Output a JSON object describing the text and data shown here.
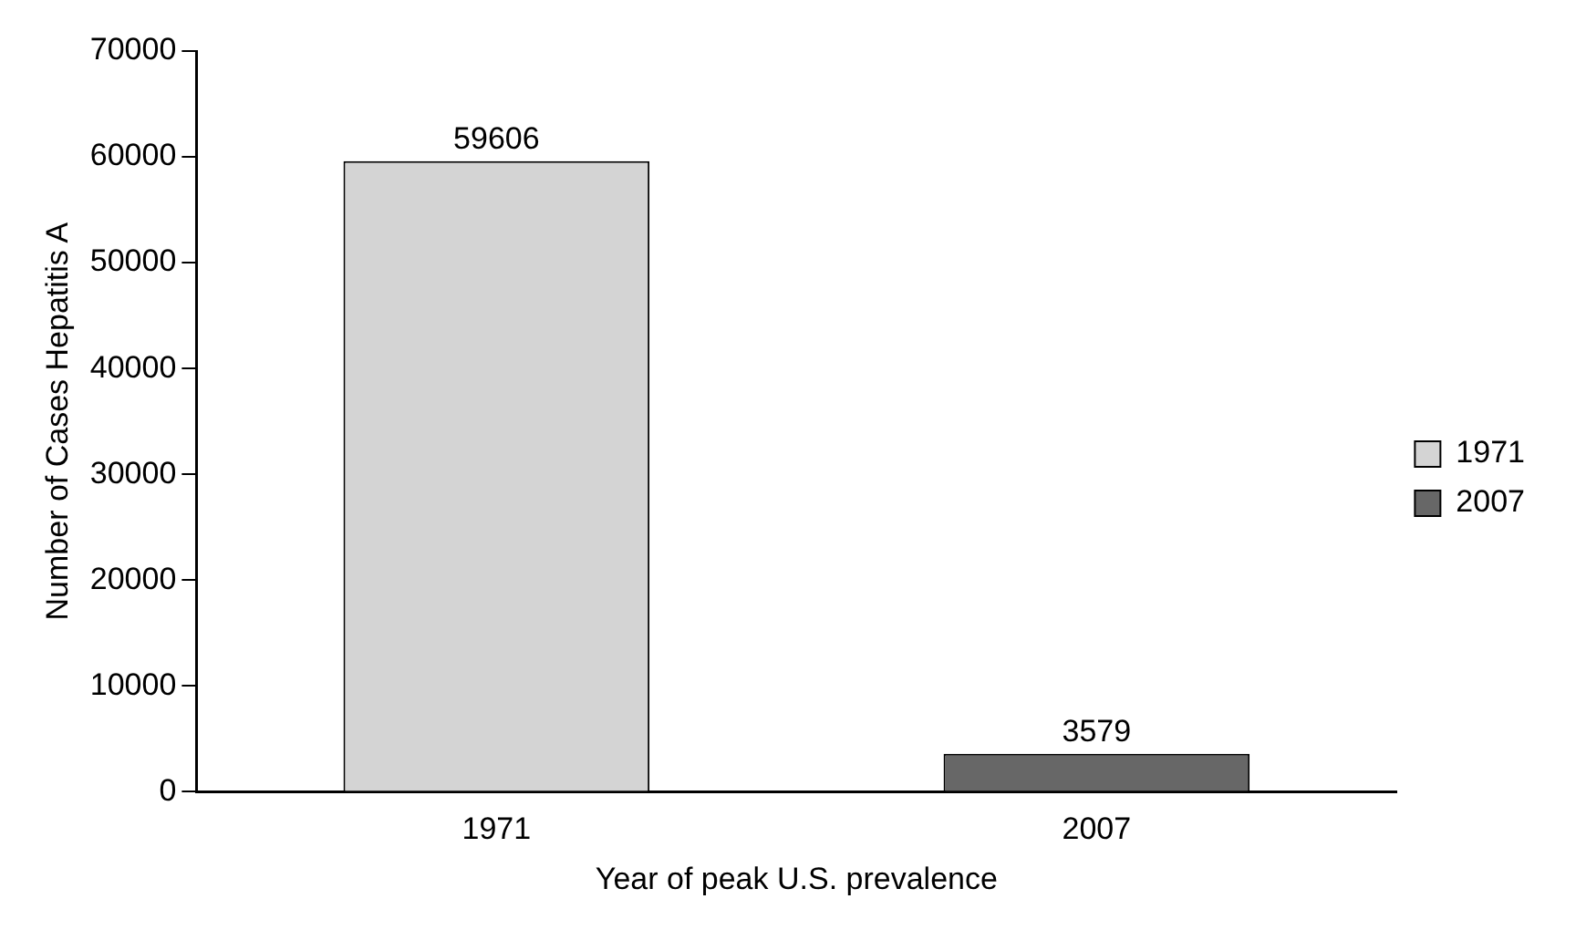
{
  "chart_data": {
    "type": "bar",
    "xlabel": "Year of peak U.S. prevalence",
    "ylabel": "Number of Cases Hepatitis A",
    "categories": [
      "1971",
      "2007"
    ],
    "series": [
      {
        "name": "1971",
        "color": "#d4d4d4",
        "values": [
          59606,
          null
        ]
      },
      {
        "name": "2007",
        "color": "#676767",
        "values": [
          null,
          3579
        ]
      }
    ],
    "ylim": [
      0,
      70000
    ],
    "yticks": [
      0,
      10000,
      20000,
      30000,
      40000,
      50000,
      60000,
      70000
    ],
    "data_labels": true,
    "legend": "right",
    "grid": false
  }
}
